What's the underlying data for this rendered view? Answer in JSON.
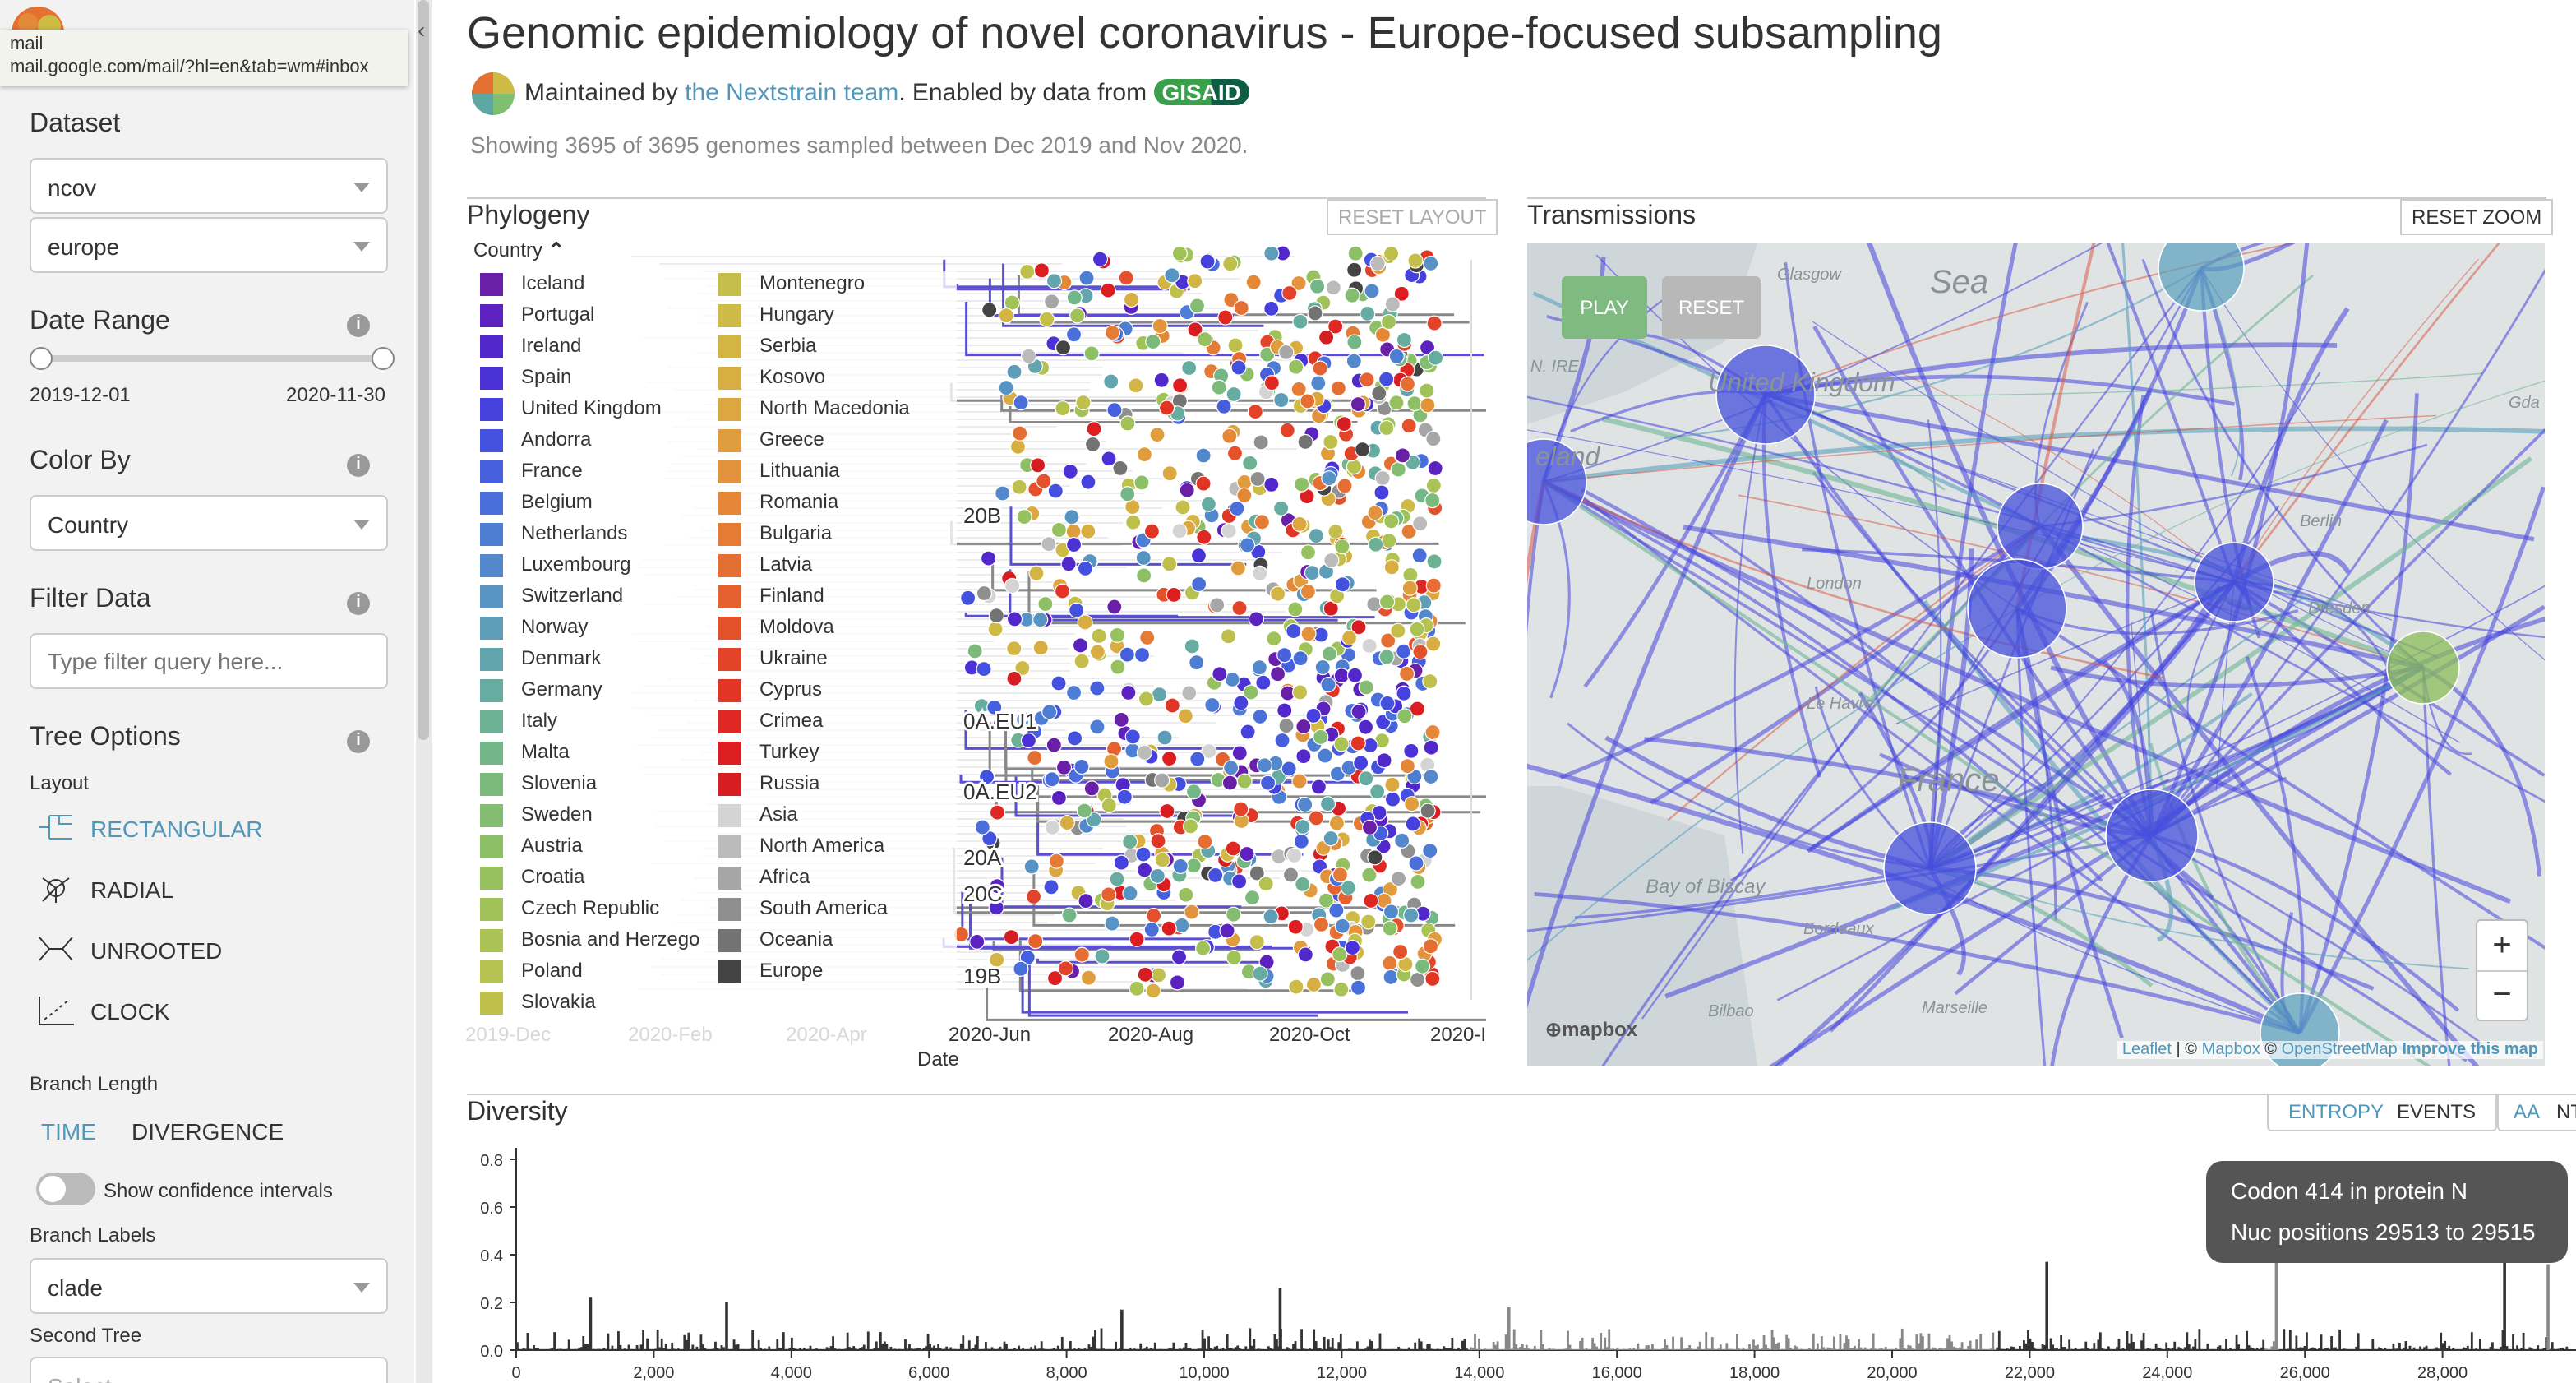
{
  "browser_tooltip": {
    "title": "mail",
    "url": "mail.google.com/mail/?hl=en&tab=wm#inbox"
  },
  "sidebar": {
    "dataset_label": "Dataset",
    "dataset_values": [
      "ncov",
      "europe"
    ],
    "date_range_label": "Date Range",
    "date_start": "2019-12-01",
    "date_end": "2020-11-30",
    "date_slider": [
      0,
      1
    ],
    "color_by_label": "Color By",
    "color_by_value": "Country",
    "filter_label": "Filter Data",
    "filter_placeholder": "Type filter query here...",
    "tree_options_label": "Tree Options",
    "layout_label": "Layout",
    "layouts": [
      "RECTANGULAR",
      "RADIAL",
      "UNROOTED",
      "CLOCK"
    ],
    "active_layout": "RECTANGULAR",
    "branch_length_label": "Branch Length",
    "branch_length_options": [
      "TIME",
      "DIVERGENCE"
    ],
    "confidence_label": "Show confidence intervals",
    "confidence_on": false,
    "branch_labels_label": "Branch Labels",
    "branch_labels_value": "clade",
    "second_tree_label": "Second Tree",
    "second_tree_placeholder": "Select..."
  },
  "header": {
    "title": "Genomic epidemiology of novel coronavirus - Europe-focused subsampling",
    "maintained_prefix": "Maintained by ",
    "maintainer_link": "the Nextstrain team",
    "enabled_text": ". Enabled by data from ",
    "gisaid": "GISAID",
    "summary": "Showing 3695 of 3695 genomes sampled between Dec 2019 and Nov 2020."
  },
  "phylogeny": {
    "title": "Phylogeny",
    "reset_label": "RESET LAYOUT",
    "legend_title": "Country",
    "legend": [
      {
        "name": "Iceland",
        "color": "#6A1FA8"
      },
      {
        "name": "Portugal",
        "color": "#5B22C0"
      },
      {
        "name": "Ireland",
        "color": "#5328CB"
      },
      {
        "name": "Spain",
        "color": "#4B32D6"
      },
      {
        "name": "United Kingdom",
        "color": "#4640DD"
      },
      {
        "name": "Andorra",
        "color": "#4450DE"
      },
      {
        "name": "France",
        "color": "#4660DD"
      },
      {
        "name": "Belgium",
        "color": "#4A6FDA"
      },
      {
        "name": "Netherlands",
        "color": "#4E7DD4"
      },
      {
        "name": "Luxembourg",
        "color": "#5389CC"
      },
      {
        "name": "Switzerland",
        "color": "#5894C3"
      },
      {
        "name": "Norway",
        "color": "#5D9DB8"
      },
      {
        "name": "Denmark",
        "color": "#62A5AC"
      },
      {
        "name": "Germany",
        "color": "#67ACA0"
      },
      {
        "name": "Italy",
        "color": "#6CB193"
      },
      {
        "name": "Malta",
        "color": "#73B687"
      },
      {
        "name": "Slovenia",
        "color": "#7BBA7B"
      },
      {
        "name": "Sweden",
        "color": "#84BD71"
      },
      {
        "name": "Austria",
        "color": "#8DBF67"
      },
      {
        "name": "Croatia",
        "color": "#97C15F"
      },
      {
        "name": "Czech Republic",
        "color": "#A1C259"
      },
      {
        "name": "Bosnia and Herzego",
        "color": "#ABC254"
      },
      {
        "name": "Poland",
        "color": "#B5C250"
      },
      {
        "name": "Slovakia",
        "color": "#BFC04C"
      },
      {
        "name": "Montenegro",
        "color": "#C6BE4A"
      },
      {
        "name": "Hungary",
        "color": "#CDBA47"
      },
      {
        "name": "Serbia",
        "color": "#D3B545"
      },
      {
        "name": "Kosovo",
        "color": "#D8AE43"
      },
      {
        "name": "North Macedonia",
        "color": "#DCA640"
      },
      {
        "name": "Greece",
        "color": "#E09D3E"
      },
      {
        "name": "Lithuania",
        "color": "#E2933B"
      },
      {
        "name": "Romania",
        "color": "#E48838"
      },
      {
        "name": "Bulgaria",
        "color": "#E57C35"
      },
      {
        "name": "Latvia",
        "color": "#E56F32"
      },
      {
        "name": "Finland",
        "color": "#E5612F"
      },
      {
        "name": "Moldova",
        "color": "#E4522C"
      },
      {
        "name": "Ukraine",
        "color": "#E34329"
      },
      {
        "name": "Cyprus",
        "color": "#E13526"
      },
      {
        "name": "Crimea",
        "color": "#DF2823"
      },
      {
        "name": "Turkey",
        "color": "#DC1E21"
      },
      {
        "name": "Russia",
        "color": "#D61E22"
      },
      {
        "name": "Asia",
        "color": "#D4D4D4"
      },
      {
        "name": "North America",
        "color": "#BBBBBB"
      },
      {
        "name": "Africa",
        "color": "#A6A6A6"
      },
      {
        "name": "South America",
        "color": "#8F8F8F"
      },
      {
        "name": "Oceania",
        "color": "#737373"
      },
      {
        "name": "Europe",
        "color": "#444444"
      }
    ],
    "x_ticks": [
      "2019-Dec",
      "2020-Feb",
      "2020-Apr",
      "2020-Jun",
      "2020-Aug",
      "2020-Oct",
      "2020-I"
    ],
    "x_label": "Date",
    "clade_labels": [
      "20B",
      "0A.EU1",
      "0A.EU2",
      "20A",
      "20C",
      "19B"
    ]
  },
  "transmissions": {
    "title": "Transmissions",
    "reset_zoom": "RESET ZOOM",
    "play": "PLAY",
    "reset": "RESET",
    "map_labels": [
      "Sea",
      "Glasgow",
      "N. IRE",
      "eland",
      "United Kingdom",
      "London",
      "Le Havre",
      "France",
      "Bay of Biscay",
      "Bordeaux",
      "Bilbao",
      "Marseille",
      "Berlin",
      "Dresden",
      "Gda"
    ],
    "zoom_in": "+",
    "zoom_out": "−",
    "logo": "mapbox",
    "attribution": {
      "leaflet": "Leaflet",
      "sep": " | © ",
      "mapbox": "Mapbox",
      "osm_prefix": " © ",
      "osm": "OpenStreetMap",
      "improve": "Improve this map"
    }
  },
  "diversity": {
    "title": "Diversity",
    "tabs": [
      "ENTROPY",
      "EVENTS"
    ],
    "active_tab": "ENTROPY",
    "mode": [
      "AA",
      "NT"
    ],
    "active_mode": "AA",
    "y_ticks": [
      "0.8",
      "0.6",
      "0.4",
      "0.2",
      "0.0"
    ],
    "x_ticks": [
      "0",
      "2,000",
      "4,000",
      "6,000",
      "8,000",
      "10,000",
      "12,000",
      "14,000",
      "16,000",
      "18,000",
      "20,000",
      "22,000",
      "24,000",
      "26,000",
      "28,000"
    ],
    "peaks": [
      {
        "pos": 1059,
        "value": 0.22
      },
      {
        "pos": 3037,
        "value": 0.2
      },
      {
        "pos": 8782,
        "value": 0.17
      },
      {
        "pos": 11083,
        "value": 0.26
      },
      {
        "pos": 14408,
        "value": 0.18
      },
      {
        "pos": 22227,
        "value": 0.37
      },
      {
        "pos": 25563,
        "value": 0.52
      },
      {
        "pos": 28881,
        "value": 0.73
      },
      {
        "pos": 29513,
        "value": 0.36
      }
    ],
    "tooltip": {
      "line1": "Codon 414 in protein N",
      "line2": "Nuc positions 29513 to 29515"
    }
  }
}
